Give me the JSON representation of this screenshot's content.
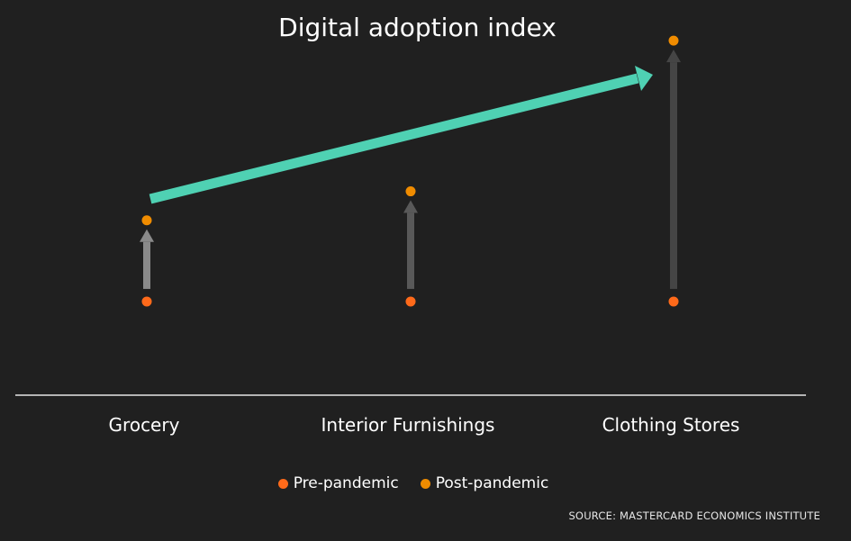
{
  "chart_data": {
    "type": "scatter",
    "title": "Digital adoption index",
    "categories": [
      "Grocery",
      "Interior Furnishings",
      "Clothing Stores"
    ],
    "series": [
      {
        "name": "Pre-pandemic",
        "color": "#ff6a1a",
        "values": [
          0,
          0,
          0
        ]
      },
      {
        "name": "Post-pandemic",
        "color": "#f08c00",
        "values": [
          70,
          95,
          225
        ]
      }
    ],
    "ylim": [
      -80,
      260
    ],
    "grid": false,
    "legend_position": "bottom",
    "trend_arrow_color": "#4fd1b3",
    "change_arrow_colors": [
      "#8a8a8a",
      "#595959",
      "#454545"
    ],
    "source": "SOURCE: MASTERCARD ECONOMICS INSTITUTE"
  }
}
